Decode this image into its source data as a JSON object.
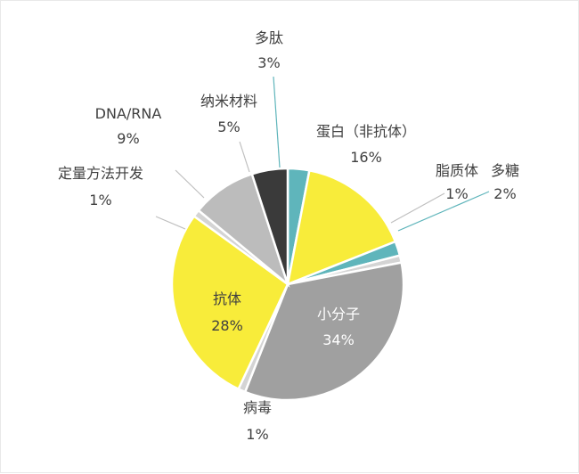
{
  "chart_data": {
    "type": "pie",
    "title": "",
    "slices": [
      {
        "name": "多肽",
        "label": "3%",
        "value": 3,
        "color": "#5fb5bb"
      },
      {
        "name": "蛋白（非抗体）",
        "label": "16%",
        "value": 16,
        "color": "#f8ec3a"
      },
      {
        "name": "多糖",
        "label": "2%",
        "value": 2,
        "color": "#5fb5bb"
      },
      {
        "name": "脂质体",
        "label": "1%",
        "value": 1,
        "color": "#d4d4d4"
      },
      {
        "name": "小分子",
        "label": "34%",
        "value": 34,
        "color": "#a0a0a0"
      },
      {
        "name": "病毒",
        "label": "1%",
        "value": 1,
        "color": "#d4d4d4"
      },
      {
        "name": "抗体",
        "label": "28%",
        "value": 28,
        "color": "#f8ec3a"
      },
      {
        "name": "定量方法开发",
        "label": "1%",
        "value": 1,
        "color": "#d4d4d4"
      },
      {
        "name": "DNA/RNA",
        "label": "9%",
        "value": 9,
        "color": "#bcbcbc"
      },
      {
        "name": "纳米材料",
        "label": "5%",
        "value": 5,
        "color": "#3a3a3a"
      }
    ],
    "legend": "none"
  }
}
